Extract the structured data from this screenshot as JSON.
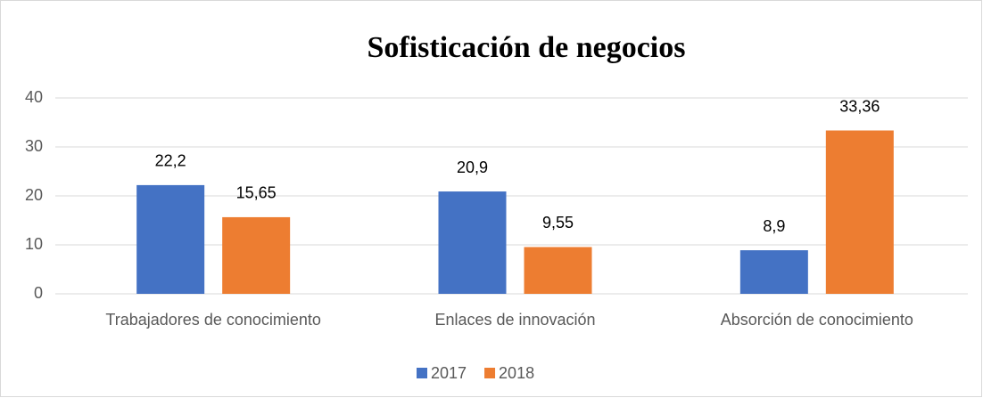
{
  "chart_data": {
    "type": "bar",
    "title": "Sofisticación de negocios",
    "categories": [
      "Trabajadores de conocimiento",
      "Enlaces de innovación",
      "Absorción de conocimiento"
    ],
    "series": [
      {
        "name": "2017",
        "color": "#4472c4",
        "values": [
          22.2,
          20.9,
          8.9
        ],
        "value_labels": [
          "22,2",
          "20,9",
          "8,9"
        ]
      },
      {
        "name": "2018",
        "color": "#ed7d31",
        "values": [
          15.65,
          9.55,
          33.36
        ],
        "value_labels": [
          "15,65",
          "9,55",
          "33,36"
        ]
      }
    ],
    "ylim": [
      0,
      40
    ],
    "yticks": [
      0,
      10,
      20,
      30,
      40
    ],
    "grid": true,
    "legend": "bottom"
  }
}
